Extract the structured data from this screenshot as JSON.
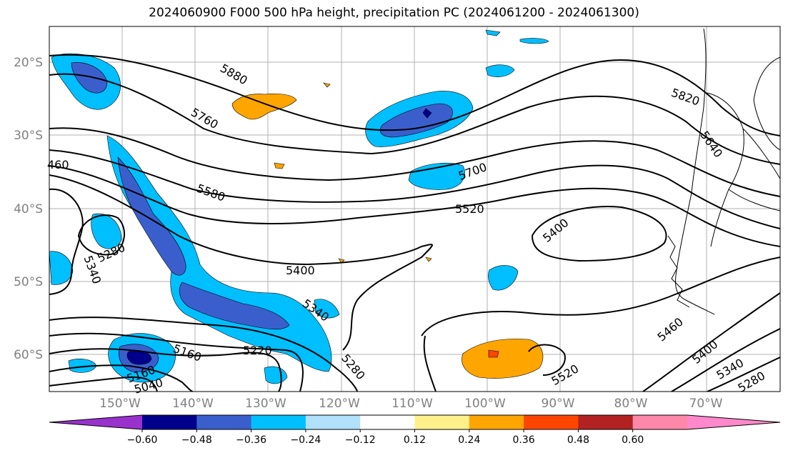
{
  "title": "2024060900 F000 500 hPa height, precipitation PC (2024061200 - 2024061300)",
  "map": {
    "lat_labels": [
      "20°S",
      "30°S",
      "40°S",
      "50°S",
      "60°S"
    ],
    "lon_labels": [
      "150°W",
      "140°W",
      "130°W",
      "120°W",
      "110°W",
      "100°W",
      "90°W",
      "80°W",
      "70°W"
    ],
    "contour_labels": [
      "5880",
      "5760",
      "5580",
      "5700",
      "5520",
      "5400",
      "5820",
      "5640",
      "5460",
      "5400",
      "5340",
      "5280",
      "5340",
      "5280",
      "5400",
      "5340",
      "5280",
      "5220",
      "5160",
      "5160",
      "5040",
      "5520",
      "460"
    ],
    "label_color": "#808080"
  },
  "colorbar": {
    "ticks": [
      "−0.60",
      "−0.48",
      "−0.36",
      "−0.24",
      "−0.12",
      "0.12",
      "0.24",
      "0.36",
      "0.48",
      "0.60"
    ],
    "colors": [
      "#9932cc",
      "#00008b",
      "#3a5fcd",
      "#00bfff",
      "#b0e0fa",
      "#ffffff",
      "#fff08c",
      "#ffa500",
      "#ff4500",
      "#b22222",
      "#ff88aa",
      "#ff88cc"
    ]
  }
}
